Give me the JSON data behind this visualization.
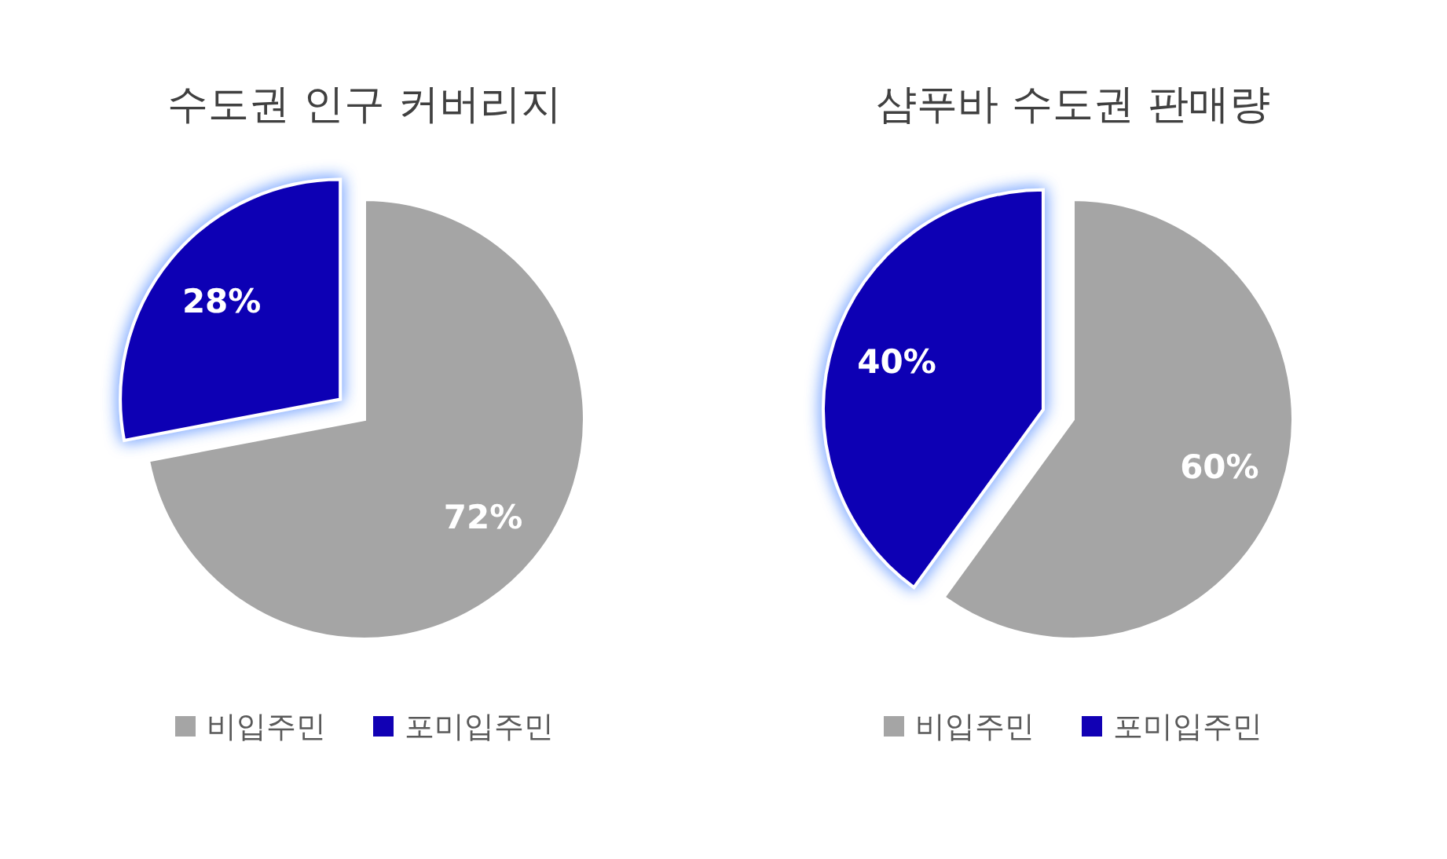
{
  "chart_data": [
    {
      "type": "pie",
      "title": "수도권 인구 커버리지",
      "categories": [
        "비입주민",
        "포미입주민"
      ],
      "values": [
        72,
        28
      ],
      "colors": [
        "#a5a5a5",
        "#1100b4"
      ],
      "value_labels": [
        "72%",
        "28%"
      ],
      "legend": "bottom"
    },
    {
      "type": "pie",
      "title": "샴푸바 수도권 판매량",
      "categories": [
        "비입주민",
        "포미입주민"
      ],
      "values": [
        60,
        40
      ],
      "colors": [
        "#a5a5a5",
        "#1100b4"
      ],
      "value_labels": [
        "60%",
        "40%"
      ],
      "legend": "bottom"
    }
  ]
}
